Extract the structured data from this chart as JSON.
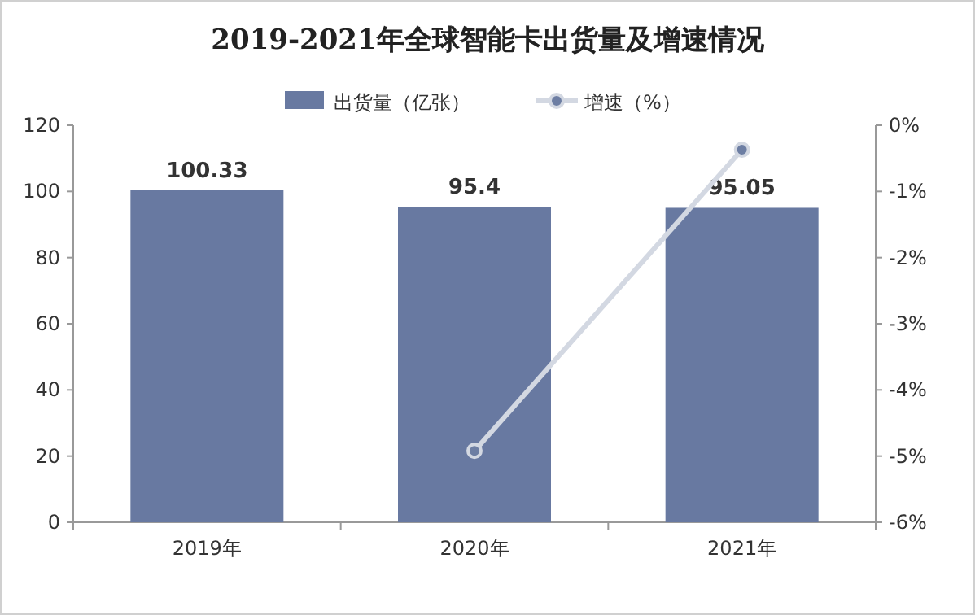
{
  "chart_data": {
    "type": "bar",
    "title": "2019-2021年全球智能卡出货量及增速情况",
    "categories": [
      "2019年",
      "2020年",
      "2021年"
    ],
    "series": [
      {
        "name": "出货量（亿张）",
        "color": "#6879a1",
        "values": [
          100.33,
          95.4,
          95.05
        ],
        "value_labels": [
          "100.33",
          "95.4",
          "95.05"
        ]
      },
      {
        "name": "增速（%）",
        "type": "line",
        "axis": "y2",
        "color": "#d3d8e2",
        "marker": "circle",
        "values": [
          null,
          -4.92,
          -0.37
        ]
      }
    ],
    "ylim": [
      0,
      120
    ],
    "yticks": [
      0,
      20,
      40,
      60,
      80,
      100,
      120
    ],
    "y2lim": [
      -6,
      0
    ],
    "y2ticks": [
      {
        "value": 0,
        "label": "0%"
      },
      {
        "value": -1,
        "label": "-1%"
      },
      {
        "value": -2,
        "label": "-2%"
      },
      {
        "value": -3,
        "label": "-3%"
      },
      {
        "value": -4,
        "label": "-4%"
      },
      {
        "value": -5,
        "label": "-5%"
      },
      {
        "value": -6,
        "label": "-6%"
      }
    ],
    "legend": "top"
  }
}
